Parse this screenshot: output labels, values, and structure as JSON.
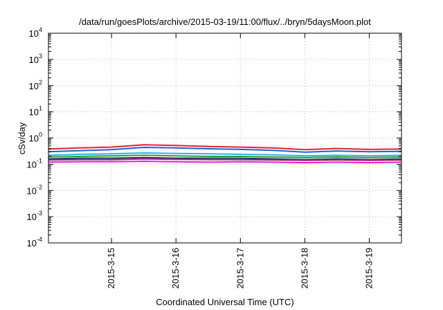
{
  "chart_data": {
    "type": "line",
    "title": "/data/run/goesPlots/archive/2015-03-19/11:00/flux/../bryn/5daysMoon.plot",
    "xlabel": "Coordinated Universal Time (UTC)",
    "ylabel": "cSv/day",
    "yscale": "log",
    "ylim": [
      0.0001,
      10000
    ],
    "xlim": [
      "2015-03-14T00:30",
      "2015-03-19T12:00"
    ],
    "y_ticks": [
      {
        "value": 0.0001,
        "base": "10",
        "exp": "-4"
      },
      {
        "value": 0.001,
        "base": "10",
        "exp": "-3"
      },
      {
        "value": 0.01,
        "base": "10",
        "exp": "-2"
      },
      {
        "value": 0.1,
        "base": "10",
        "exp": "-1"
      },
      {
        "value": 1,
        "base": "10",
        "exp": "0"
      },
      {
        "value": 10,
        "base": "10",
        "exp": "1"
      },
      {
        "value": 100,
        "base": "10",
        "exp": "2"
      },
      {
        "value": 1000,
        "base": "10",
        "exp": "3"
      },
      {
        "value": 10000,
        "base": "10",
        "exp": "4"
      }
    ],
    "x_ticks": [
      {
        "value": "2015-03-15T00:00",
        "label": "2015-3-15"
      },
      {
        "value": "2015-03-16T00:00",
        "label": "2015-3-16"
      },
      {
        "value": "2015-03-17T00:00",
        "label": "2015-3-17"
      },
      {
        "value": "2015-03-18T00:00",
        "label": "2015-3-18"
      },
      {
        "value": "2015-03-19T00:00",
        "label": "2015-3-19"
      }
    ],
    "grid": true,
    "series": [
      {
        "color": "#e8202a",
        "x": [
          "2015-03-14T00:30",
          "2015-03-14T12:00",
          "2015-03-15T00:00",
          "2015-03-15T12:00",
          "2015-03-16T00:00",
          "2015-03-16T12:00",
          "2015-03-17T00:00",
          "2015-03-17T12:00",
          "2015-03-18T00:00",
          "2015-03-18T12:00",
          "2015-03-19T00:00",
          "2015-03-19T12:00"
        ],
        "y": [
          0.38,
          0.42,
          0.45,
          0.55,
          0.52,
          0.48,
          0.45,
          0.42,
          0.36,
          0.4,
          0.37,
          0.38
        ]
      },
      {
        "color": "#1f5fe0",
        "x": [
          "2015-03-14T00:30",
          "2015-03-14T12:00",
          "2015-03-15T00:00",
          "2015-03-15T12:00",
          "2015-03-16T00:00",
          "2015-03-16T12:00",
          "2015-03-17T00:00",
          "2015-03-17T12:00",
          "2015-03-18T00:00",
          "2015-03-18T12:00",
          "2015-03-19T00:00",
          "2015-03-19T12:00"
        ],
        "y": [
          0.3,
          0.33,
          0.36,
          0.44,
          0.42,
          0.39,
          0.37,
          0.34,
          0.29,
          0.32,
          0.3,
          0.31
        ]
      },
      {
        "color": "#28b4e8",
        "x": [
          "2015-03-14T00:30",
          "2015-03-14T12:00",
          "2015-03-15T00:00",
          "2015-03-15T12:00",
          "2015-03-16T00:00",
          "2015-03-16T12:00",
          "2015-03-17T00:00",
          "2015-03-17T12:00",
          "2015-03-18T00:00",
          "2015-03-18T12:00",
          "2015-03-19T00:00",
          "2015-03-19T12:00"
        ],
        "y": [
          0.22,
          0.24,
          0.25,
          0.27,
          0.26,
          0.25,
          0.24,
          0.23,
          0.21,
          0.22,
          0.21,
          0.22
        ]
      },
      {
        "color": "#2aa02a",
        "x": [
          "2015-03-14T00:30",
          "2015-03-14T12:00",
          "2015-03-15T00:00",
          "2015-03-15T12:00",
          "2015-03-16T00:00",
          "2015-03-16T12:00",
          "2015-03-17T00:00",
          "2015-03-17T12:00",
          "2015-03-18T00:00",
          "2015-03-18T12:00",
          "2015-03-19T00:00",
          "2015-03-19T12:00"
        ],
        "y": [
          0.19,
          0.2,
          0.21,
          0.22,
          0.21,
          0.2,
          0.2,
          0.19,
          0.18,
          0.19,
          0.18,
          0.19
        ]
      },
      {
        "color": "#2a2a6a",
        "x": [
          "2015-03-14T00:30",
          "2015-03-14T12:00",
          "2015-03-15T00:00",
          "2015-03-15T12:00",
          "2015-03-16T00:00",
          "2015-03-16T12:00",
          "2015-03-17T00:00",
          "2015-03-17T12:00",
          "2015-03-18T00:00",
          "2015-03-18T12:00",
          "2015-03-19T00:00",
          "2015-03-19T12:00"
        ],
        "y": [
          0.16,
          0.17,
          0.17,
          0.18,
          0.17,
          0.17,
          0.17,
          0.16,
          0.15,
          0.16,
          0.15,
          0.16
        ]
      },
      {
        "color": "#a0287a",
        "x": [
          "2015-03-14T00:30",
          "2015-03-14T12:00",
          "2015-03-15T00:00",
          "2015-03-15T12:00",
          "2015-03-16T00:00",
          "2015-03-16T12:00",
          "2015-03-17T00:00",
          "2015-03-17T12:00",
          "2015-03-18T00:00",
          "2015-03-18T12:00",
          "2015-03-19T00:00",
          "2015-03-19T12:00"
        ],
        "y": [
          0.145,
          0.15,
          0.15,
          0.16,
          0.155,
          0.15,
          0.15,
          0.145,
          0.14,
          0.145,
          0.14,
          0.145
        ]
      },
      {
        "color": "#e020e0",
        "x": [
          "2015-03-14T00:30",
          "2015-03-14T12:00",
          "2015-03-15T00:00",
          "2015-03-15T12:00",
          "2015-03-16T00:00",
          "2015-03-16T12:00",
          "2015-03-17T00:00",
          "2015-03-17T12:00",
          "2015-03-18T00:00",
          "2015-03-18T12:00",
          "2015-03-19T00:00",
          "2015-03-19T12:00"
        ],
        "y": [
          0.12,
          0.125,
          0.125,
          0.13,
          0.125,
          0.12,
          0.125,
          0.12,
          0.115,
          0.12,
          0.115,
          0.12
        ]
      }
    ]
  }
}
